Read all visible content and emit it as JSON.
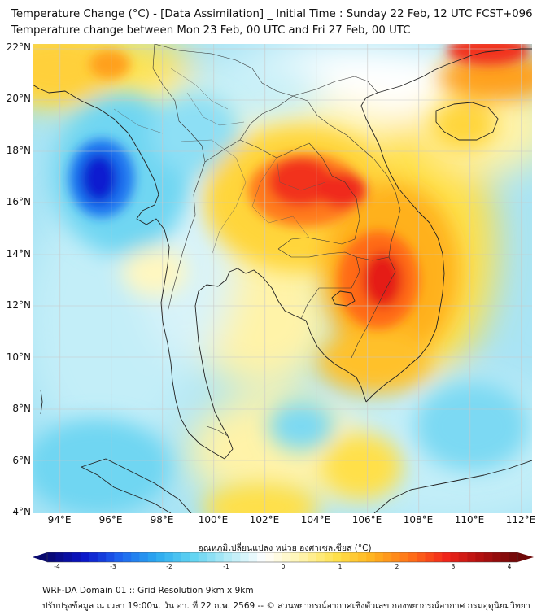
{
  "header": {
    "title_line1": "Temperature Change (°C) - [Data Assimilation] _ Initial Time : Sunday 22 Feb, 12 UTC FCST+096",
    "title_line2": "Temperature change between Mon 23 Feb, 00 UTC and Fri 27 Feb, 00 UTC"
  },
  "map": {
    "lat_labels": [
      "22°N",
      "20°N",
      "18°N",
      "16°N",
      "14°N",
      "12°N",
      "10°N",
      "8°N",
      "6°N",
      "4°N"
    ],
    "lon_labels": [
      "94°E",
      "96°E",
      "98°E",
      "100°E",
      "102°E",
      "104°E",
      "106°E",
      "108°E",
      "110°E",
      "112°E"
    ],
    "lat_range": [
      4,
      22.3
    ],
    "lon_range": [
      93.0,
      112.5
    ]
  },
  "colorbar": {
    "title": "อุณหภูมิเปลี่ยนแปลง หน่วย องศาเซลเซียส (°C)",
    "ticks": [
      "-4",
      "-3",
      "-2",
      "-1",
      "0",
      "1",
      "2",
      "3",
      "4"
    ],
    "range": [
      -4,
      4
    ],
    "colors": [
      "#08086e",
      "#0a14c8",
      "#1e64f0",
      "#2aa8f0",
      "#5fd3f2",
      "#b6ecf7",
      "#ffffff",
      "#fff5b0",
      "#ffe04a",
      "#ffb21e",
      "#ff7418",
      "#f2261a",
      "#b00f0f",
      "#6e0808"
    ]
  },
  "footer": {
    "line1": "WRF-DA Domain 01 :: Grid Resolution 9km x 9km",
    "line2": "ปรับปรุงข้อมูล ณ เวลา 19:00น. วัน อา. ที่ 22 ก.พ. 2569 -- © ส่วนพยากรณ์อากาศเชิงตัวเลข กองพยากรณ์อากาศ กรมอุตุนิยมวิทยา"
  }
}
